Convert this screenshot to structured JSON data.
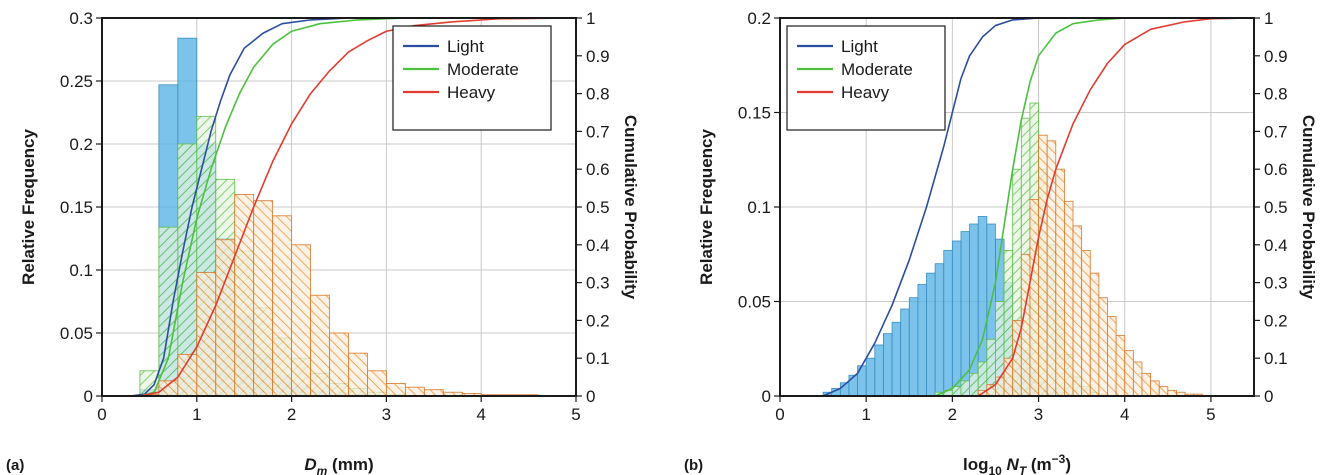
{
  "chart_data": [
    {
      "type": "bar",
      "panel_label": "(a)",
      "xlabel_main": "D",
      "xlabel_sub": "m",
      "xlabel_unit": " (mm)",
      "ylabel": "Relative Frequency",
      "ylabel_right": "Cumulative Probability",
      "xlim": [
        0,
        5
      ],
      "ylim": [
        0,
        0.3
      ],
      "ylim_right": [
        0,
        1
      ],
      "xticks": [
        0,
        1,
        2,
        3,
        4,
        5
      ],
      "xtick_labels": [
        "0",
        "1",
        "2",
        "3",
        "4",
        "5"
      ],
      "yticks": [
        0,
        0.05,
        0.1,
        0.15,
        0.2,
        0.25,
        0.3
      ],
      "ytick_labels": [
        "0",
        "0.05",
        "0.1",
        "0.15",
        "0.2",
        "0.25",
        "0.3"
      ],
      "yticks_right": [
        0,
        0.1,
        0.2,
        0.3,
        0.4,
        0.5,
        0.6,
        0.7,
        0.8,
        0.9,
        1
      ],
      "ytick_labels_right": [
        "0",
        "0.1",
        "0.2",
        "0.3",
        "0.4",
        "0.5",
        "0.6",
        "0.7",
        "0.8",
        "0.9",
        "1"
      ],
      "grid": true,
      "legend_position": "top-right",
      "bin_start": 0.4,
      "bin_width": 0.2,
      "series": [
        {
          "name": "Light",
          "color": "#2b4f9e",
          "hist_color": "#5ab4e5",
          "fill": "solid",
          "hist": [
            0.005,
            0.247,
            0.284,
            0.2,
            0.125,
            0.063,
            0.033,
            0.016,
            0.008,
            0.004,
            0.002,
            0.001,
            0,
            0,
            0
          ],
          "cdf_x": [
            0,
            0.3,
            0.45,
            0.55,
            0.65,
            0.75,
            0.85,
            0.95,
            1.05,
            1.15,
            1.25,
            1.35,
            1.5,
            1.7,
            1.9,
            2.2,
            2.6,
            3.0,
            5.0
          ],
          "cdf_y": [
            0,
            0,
            0.005,
            0.03,
            0.1,
            0.25,
            0.38,
            0.5,
            0.6,
            0.7,
            0.78,
            0.85,
            0.92,
            0.96,
            0.985,
            0.995,
            1,
            1,
            1
          ]
        },
        {
          "name": "Moderate",
          "color": "#4cc03f",
          "hist_color": "#5cbf4a",
          "fill": "hatch",
          "hist": [
            0.02,
            0.134,
            0.2,
            0.222,
            0.172,
            0.115,
            0.07,
            0.046,
            0.03,
            0.018,
            0.01,
            0.006,
            0.003,
            0.001,
            0
          ],
          "cdf_x": [
            0,
            0.4,
            0.55,
            0.7,
            0.85,
            1.0,
            1.15,
            1.3,
            1.45,
            1.6,
            1.8,
            2.0,
            2.3,
            2.7,
            3.2,
            5.0
          ],
          "cdf_y": [
            0,
            0,
            0.01,
            0.1,
            0.3,
            0.47,
            0.6,
            0.71,
            0.8,
            0.87,
            0.93,
            0.965,
            0.985,
            0.995,
            1,
            1
          ]
        },
        {
          "name": "Heavy",
          "color": "#e03c31",
          "hist_color": "#ec8c2e",
          "fill": "hatch",
          "hist": [
            0.001,
            0.012,
            0.033,
            0.098,
            0.124,
            0.16,
            0.155,
            0.143,
            0.12,
            0.08,
            0.05,
            0.034,
            0.02,
            0.01,
            0.007,
            0.005,
            0.003,
            0.002,
            0.001,
            0.001,
            0.001
          ],
          "cdf_x": [
            0,
            0.4,
            0.6,
            0.8,
            1.0,
            1.2,
            1.4,
            1.6,
            1.8,
            2.0,
            2.2,
            2.4,
            2.6,
            2.8,
            3.0,
            3.3,
            3.7,
            4.2,
            5.0
          ],
          "cdf_y": [
            0,
            0,
            0.01,
            0.05,
            0.13,
            0.24,
            0.37,
            0.5,
            0.62,
            0.72,
            0.8,
            0.86,
            0.91,
            0.94,
            0.965,
            0.98,
            0.99,
            0.998,
            1
          ]
        }
      ]
    },
    {
      "type": "bar",
      "panel_label": "(b)",
      "xlabel_main": "log",
      "xlabel_sub": "10",
      "xlabel_main2": " N",
      "xlabel_sub2": "T",
      "xlabel_unit": " (m",
      "xlabel_sup": "−3",
      "xlabel_close": ")",
      "ylabel": "Relative Frequency",
      "ylabel_right": "Cumulative Probability",
      "xlim": [
        0,
        5.5
      ],
      "ylim": [
        0,
        0.2
      ],
      "ylim_right": [
        0,
        1
      ],
      "xticks": [
        0,
        1,
        2,
        3,
        4,
        5
      ],
      "xtick_labels": [
        "0",
        "1",
        "2",
        "3",
        "4",
        "5"
      ],
      "yticks": [
        0,
        0.05,
        0.1,
        0.15,
        0.2
      ],
      "ytick_labels": [
        "0",
        "0.05",
        "0.1",
        "0.15",
        "0.2"
      ],
      "yticks_right": [
        0,
        0.1,
        0.2,
        0.3,
        0.4,
        0.5,
        0.6,
        0.7,
        0.8,
        0.9,
        1
      ],
      "ytick_labels_right": [
        "0",
        "0.1",
        "0.2",
        "0.3",
        "0.4",
        "0.5",
        "0.6",
        "0.7",
        "0.8",
        "0.9",
        "1"
      ],
      "grid": true,
      "legend_position": "top-left",
      "bin_start": 0.5,
      "bin_width": 0.1,
      "series": [
        {
          "name": "Light",
          "color": "#2b4f9e",
          "hist_color": "#5ab4e5",
          "fill": "solid",
          "hist": [
            0.002,
            0.004,
            0.007,
            0.011,
            0.016,
            0.02,
            0.027,
            0.033,
            0.039,
            0.046,
            0.052,
            0.059,
            0.065,
            0.07,
            0.077,
            0.082,
            0.087,
            0.091,
            0.095,
            0.091,
            0.083,
            0.06,
            0.04,
            0.024,
            0.015,
            0.008,
            0.004,
            0.002,
            0.001
          ],
          "cdf_x": [
            0,
            0.5,
            0.7,
            0.9,
            1.1,
            1.3,
            1.5,
            1.7,
            1.9,
            2.0,
            2.1,
            2.2,
            2.35,
            2.5,
            2.7,
            3.0,
            5.5
          ],
          "cdf_y": [
            0,
            0,
            0.02,
            0.06,
            0.14,
            0.24,
            0.36,
            0.5,
            0.66,
            0.75,
            0.84,
            0.9,
            0.95,
            0.98,
            0.995,
            1,
            1
          ]
        },
        {
          "name": "Moderate",
          "color": "#4cc03f",
          "hist_color": "#5cbf4a",
          "fill": "hatch",
          "hist": [
            0.002,
            0.003,
            0.005,
            0.008,
            0.012,
            0.018,
            0.03,
            0.05,
            0.077,
            0.12,
            0.147,
            0.155,
            0.12,
            0.08,
            0.045,
            0.022,
            0.01,
            0.005,
            0.002,
            0.001
          ],
          "hist_start": 1.8,
          "cdf_x": [
            0,
            1.8,
            2.0,
            2.2,
            2.35,
            2.5,
            2.6,
            2.7,
            2.8,
            2.9,
            3.0,
            3.2,
            3.4,
            3.7,
            4.0,
            5.5
          ],
          "cdf_y": [
            0,
            0,
            0.02,
            0.07,
            0.15,
            0.3,
            0.45,
            0.6,
            0.73,
            0.83,
            0.9,
            0.96,
            0.985,
            0.995,
            1,
            1
          ]
        },
        {
          "name": "Heavy",
          "color": "#e03c31",
          "hist_color": "#ec8c2e",
          "fill": "hatch",
          "hist": [
            0.003,
            0.006,
            0.01,
            0.02,
            0.04,
            0.075,
            0.104,
            0.138,
            0.135,
            0.12,
            0.103,
            0.09,
            0.077,
            0.065,
            0.052,
            0.042,
            0.032,
            0.024,
            0.018,
            0.012,
            0.008,
            0.005,
            0.003,
            0.002,
            0.001,
            0.001
          ],
          "hist_start": 2.3,
          "cdf_x": [
            0,
            2.3,
            2.5,
            2.7,
            2.8,
            2.9,
            3.0,
            3.1,
            3.2,
            3.4,
            3.6,
            3.8,
            4.0,
            4.3,
            4.7,
            5.0,
            5.5
          ],
          "cdf_y": [
            0,
            0,
            0.03,
            0.1,
            0.18,
            0.3,
            0.42,
            0.52,
            0.6,
            0.72,
            0.81,
            0.88,
            0.93,
            0.97,
            0.99,
            0.998,
            1
          ]
        }
      ]
    }
  ]
}
